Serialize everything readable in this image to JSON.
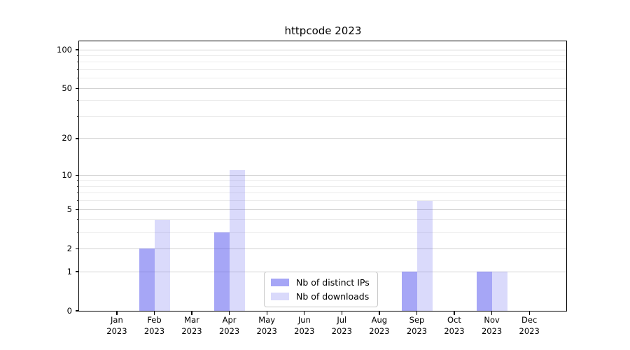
{
  "figure": {
    "background": "#ffffff"
  },
  "chart_data": {
    "type": "bar",
    "title": "httpcode 2023",
    "categories": [
      "Jan",
      "Feb",
      "Mar",
      "Apr",
      "May",
      "Jun",
      "Jul",
      "Aug",
      "Sep",
      "Oct",
      "Nov",
      "Dec"
    ],
    "x_year": "2023",
    "series": [
      {
        "name": "Nb of distinct IPs",
        "color": "rgba(85,85,238,0.52)",
        "values": [
          0,
          2,
          0,
          3,
          0,
          0,
          0,
          0,
          1,
          0,
          1,
          0
        ]
      },
      {
        "name": "Nb of downloads",
        "color": "rgba(85,85,238,0.22)",
        "values": [
          0,
          4,
          0,
          11,
          0,
          0,
          0,
          0,
          6,
          0,
          1,
          0
        ]
      }
    ],
    "y_axis": {
      "scale": "log10(1+x)",
      "major_ticks": [
        0,
        1,
        2,
        5,
        10,
        20,
        50,
        100
      ],
      "minor_gridlines": [
        3,
        4,
        6,
        7,
        8,
        9,
        30,
        40,
        60,
        70,
        80,
        90
      ],
      "range_top": 117
    },
    "grid": true,
    "legend_position": "lower-center-inside",
    "colors": {
      "axis": "#000000",
      "grid_major": "#d2d2d2",
      "grid_minor": "#ececec"
    }
  }
}
